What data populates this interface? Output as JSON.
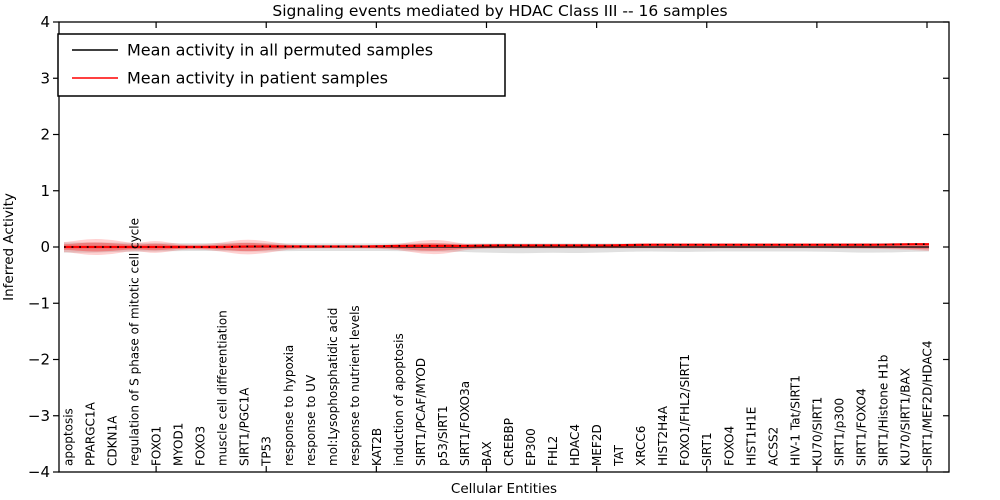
{
  "chart_data": {
    "type": "line",
    "title": "Signaling events mediated by HDAC Class III -- 16 samples",
    "xlabel": "Cellular Entities",
    "ylabel": "Inferred Activity",
    "ylim": [
      -4,
      4
    ],
    "yticks": [
      4,
      3,
      2,
      1,
      0,
      -1,
      -2,
      -3,
      -4
    ],
    "xtick_interval": 5,
    "grid": false,
    "legend": {
      "position": "upper left",
      "entries": [
        {
          "label": "Mean activity in all permuted samples",
          "color": "#000000"
        },
        {
          "label": "Mean activity in patient samples",
          "color": "#ff0000"
        }
      ]
    },
    "categories": [
      "apoptosis",
      "PPARGC1A",
      "CDKN1A",
      "regulation of S phase of mitotic cell cycle",
      "FOXO1",
      "MYOD1",
      "FOXO3",
      "muscle cell differentiation",
      "SIRT1/PGC1A",
      "TP53",
      "response to hypoxia",
      "response to UV",
      "mol:Lysophosphatidic acid",
      "response to nutrient levels",
      "KAT2B",
      "induction of apoptosis",
      "SIRT1/PCAF/MYOD",
      "p53/SIRT1",
      "SIRT1/FOXO3a",
      "BAX",
      "CREBBP",
      "EP300",
      "FHL2",
      "HDAC4",
      "MEF2D",
      "TAT",
      "XRCC6",
      "HIST2H4A",
      "FOXO1/FHL2/SIRT1",
      "SIRT1",
      "FOXO4",
      "HIST1H1E",
      "ACSS2",
      "HIV-1 Tat/SIRT1",
      "KU70/SIRT1",
      "SIRT1/p300",
      "SIRT1/FOXO4",
      "SIRT1/Histone H1b",
      "KU70/SIRT1/BAX",
      "SIRT1/MEF2D/HDAC4"
    ],
    "series": [
      {
        "name": "Mean activity in all permuted samples",
        "color": "#000000",
        "style": "solid",
        "width": 1.2,
        "values": [
          0,
          0,
          0,
          0,
          0,
          0,
          0,
          0,
          0,
          0,
          0,
          0,
          0,
          0,
          0,
          0,
          0,
          0,
          0,
          0,
          0,
          0,
          0,
          0,
          0,
          0,
          0,
          0,
          0,
          0,
          0,
          0,
          0,
          0,
          0,
          0,
          0,
          0,
          0,
          0
        ]
      },
      {
        "name": "Mean activity in patient samples",
        "color": "#ff0000",
        "style": "solid",
        "width": 2.2,
        "values": [
          0,
          0,
          0,
          0,
          0,
          0,
          0,
          0,
          0.01,
          0.01,
          0.01,
          0.01,
          0.01,
          0.01,
          0.01,
          0.02,
          0.02,
          0.02,
          0.02,
          0.03,
          0.03,
          0.03,
          0.03,
          0.03,
          0.03,
          0.03,
          0.04,
          0.04,
          0.04,
          0.04,
          0.04,
          0.04,
          0.04,
          0.04,
          0.04,
          0.04,
          0.04,
          0.04,
          0.05,
          0.05
        ]
      },
      {
        "name": "patient mean dotted overlay",
        "color": "#000000",
        "style": "dotted",
        "width": 1.6,
        "values": [
          0,
          0,
          0,
          0,
          0,
          0,
          0,
          0,
          0.01,
          0.01,
          0.01,
          0.01,
          0.01,
          0.01,
          0.01,
          0.02,
          0.02,
          0.02,
          0.02,
          0.03,
          0.03,
          0.03,
          0.03,
          0.03,
          0.03,
          0.03,
          0.04,
          0.04,
          0.04,
          0.04,
          0.04,
          0.04,
          0.04,
          0.04,
          0.04,
          0.04,
          0.04,
          0.04,
          0.05,
          0.05
        ]
      }
    ],
    "bands": [
      {
        "name": "permuted samples spread",
        "color": "#999999",
        "opacity": 0.3,
        "upper": [
          0.08,
          0.08,
          0.08,
          0.07,
          0.07,
          0.07,
          0.07,
          0.07,
          0.08,
          0.07,
          0.07,
          0.065,
          0.065,
          0.065,
          0.065,
          0.065,
          0.07,
          0.07,
          0.065,
          0.065,
          0.065,
          0.065,
          0.065,
          0.065,
          0.065,
          0.065,
          0.065,
          0.065,
          0.065,
          0.065,
          0.065,
          0.065,
          0.065,
          0.065,
          0.065,
          0.07,
          0.07,
          0.07,
          0.07,
          0.07
        ],
        "lower": [
          -0.1,
          -0.1,
          -0.09,
          -0.08,
          -0.08,
          -0.07,
          -0.07,
          -0.07,
          -0.08,
          -0.08,
          -0.07,
          -0.07,
          -0.07,
          -0.07,
          -0.07,
          -0.07,
          -0.08,
          -0.08,
          -0.09,
          -0.1,
          -0.11,
          -0.11,
          -0.1,
          -0.11,
          -0.1,
          -0.09,
          -0.08,
          -0.08,
          -0.09,
          -0.08,
          -0.08,
          -0.08,
          -0.08,
          -0.08,
          -0.08,
          -0.09,
          -0.1,
          -0.1,
          -0.09,
          -0.08
        ]
      },
      {
        "name": "patient samples spread outer",
        "color": "#ff0000",
        "opacity": 0.18,
        "upper": [
          0.09,
          0.15,
          0.13,
          0.06,
          0.12,
          0.05,
          0.04,
          0.08,
          0.14,
          0.11,
          0.04,
          0.03,
          0.025,
          0.025,
          0.03,
          0.05,
          0.12,
          0.13,
          0.05,
          0.03,
          0.025,
          0.025,
          0.025,
          0.025,
          0.025,
          0.025,
          0.025,
          0.025,
          0.025,
          0.025,
          0.025,
          0.025,
          0.025,
          0.025,
          0.025,
          0.03,
          0.03,
          0.035,
          0.045,
          0.07
        ],
        "lower": [
          -0.09,
          -0.15,
          -0.13,
          -0.06,
          -0.12,
          -0.05,
          -0.04,
          -0.08,
          -0.14,
          -0.11,
          -0.04,
          -0.03,
          -0.025,
          -0.025,
          -0.03,
          -0.05,
          -0.12,
          -0.13,
          -0.05,
          -0.03,
          -0.025,
          -0.025,
          -0.025,
          -0.025,
          -0.025,
          -0.025,
          -0.025,
          -0.025,
          -0.025,
          -0.025,
          -0.025,
          -0.025,
          -0.025,
          -0.025,
          -0.025,
          -0.03,
          -0.03,
          -0.035,
          -0.045,
          -0.07
        ]
      },
      {
        "name": "patient samples spread inner",
        "color": "#ff0000",
        "opacity": 0.3,
        "upper": [
          0.05,
          0.085,
          0.07,
          0.035,
          0.065,
          0.03,
          0.022,
          0.045,
          0.08,
          0.06,
          0.022,
          0.017,
          0.014,
          0.014,
          0.017,
          0.028,
          0.065,
          0.07,
          0.028,
          0.017,
          0.014,
          0.014,
          0.014,
          0.014,
          0.014,
          0.014,
          0.014,
          0.014,
          0.014,
          0.014,
          0.014,
          0.014,
          0.014,
          0.014,
          0.014,
          0.017,
          0.017,
          0.02,
          0.025,
          0.04
        ],
        "lower": [
          -0.05,
          -0.085,
          -0.07,
          -0.035,
          -0.065,
          -0.03,
          -0.022,
          -0.045,
          -0.08,
          -0.06,
          -0.022,
          -0.017,
          -0.014,
          -0.014,
          -0.017,
          -0.028,
          -0.065,
          -0.07,
          -0.028,
          -0.017,
          -0.014,
          -0.014,
          -0.014,
          -0.014,
          -0.014,
          -0.014,
          -0.014,
          -0.014,
          -0.014,
          -0.014,
          -0.014,
          -0.014,
          -0.014,
          -0.014,
          -0.014,
          -0.017,
          -0.017,
          -0.02,
          -0.025,
          -0.04
        ]
      }
    ]
  }
}
